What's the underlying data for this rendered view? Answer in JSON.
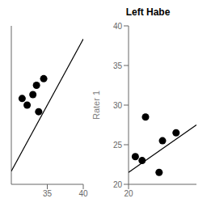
{
  "chart_data": [
    {
      "type": "scatter",
      "series": [
        {
          "type": "scatter",
          "marker": "circle",
          "color": "#000000",
          "x": [
            31.5,
            32.2,
            33.0,
            33.5,
            34.5,
            33.8
          ],
          "values": [
            36.5,
            36.0,
            36.8,
            37.5,
            38.0,
            35.5
          ]
        },
        {
          "type": "line",
          "line_style": "solid",
          "color": "#000000",
          "x": [
            30,
            40
          ],
          "values": [
            31.0,
            41.0
          ]
        }
      ],
      "xlim": [
        30,
        40
      ],
      "ylim": [
        30,
        42
      ],
      "xticks": [
        35,
        40
      ],
      "yticks": [],
      "tick_labels": "x"
    },
    {
      "type": "scatter",
      "title": "Left Habe",
      "y_label": "Rater 1",
      "series": [
        {
          "type": "scatter",
          "marker": "circle",
          "color": "#000000",
          "x": [
            21.0,
            22.0,
            22.5,
            24.5,
            25.0,
            27.0
          ],
          "values": [
            23.5,
            23.0,
            28.5,
            21.5,
            25.5,
            26.5
          ]
        },
        {
          "type": "line",
          "line_style": "solid",
          "color": "#000000",
          "x": [
            20,
            30
          ],
          "values": [
            21.5,
            27.5
          ]
        }
      ],
      "xlim": [
        20,
        30
      ],
      "ylim": [
        20,
        40
      ],
      "xticks": [
        20
      ],
      "yticks": [
        20,
        25,
        30,
        35,
        40
      ]
    }
  ]
}
